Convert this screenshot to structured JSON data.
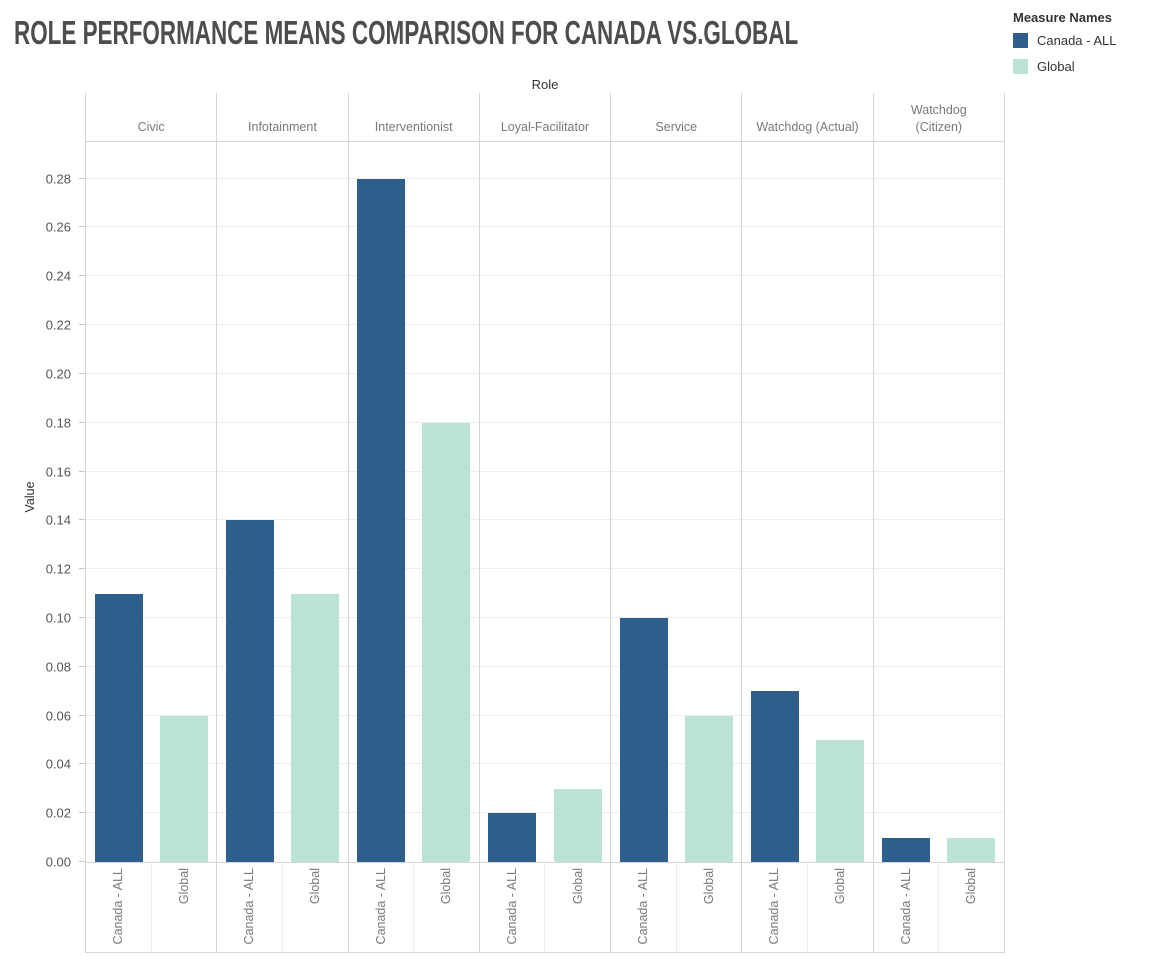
{
  "title": "ROLE PERFORMANCE MEANS COMPARISON FOR CANADA VS.GLOBAL",
  "legend": {
    "title": "Measure Names",
    "items": [
      {
        "label": "Canada - ALL",
        "color": "#2e5e8b"
      },
      {
        "label": "Global",
        "color": "#bbe3d5"
      }
    ]
  },
  "chart_data": {
    "type": "bar",
    "title": "ROLE PERFORMANCE MEANS COMPARISON FOR CANADA VS.GLOBAL",
    "column_axis_title": "Role",
    "ylabel": "Value",
    "categories": [
      "Civic",
      "Infotainment",
      "Interventionist",
      "Loyal-Facilitator",
      "Service",
      "Watchdog (Actual)",
      "Watchdog (Citizen)"
    ],
    "header_labels": [
      "Civic",
      "Infotainment",
      "Interventionist",
      "Loyal-Facilitator",
      "Service",
      "Watchdog (Actual)",
      "Watchdog\n(Citizen)"
    ],
    "series": [
      {
        "name": "Canada - ALL",
        "color": "#2e5e8b",
        "values": [
          0.11,
          0.14,
          0.28,
          0.02,
          0.1,
          0.07,
          0.01
        ]
      },
      {
        "name": "Global",
        "color": "#bbe3d5",
        "values": [
          0.06,
          0.11,
          0.18,
          0.03,
          0.06,
          0.05,
          0.01
        ]
      }
    ],
    "x_item_labels": [
      "Canada - ALL",
      "Global"
    ],
    "y_ticks": [
      "0.00",
      "0.02",
      "0.04",
      "0.06",
      "0.08",
      "0.10",
      "0.12",
      "0.14",
      "0.16",
      "0.18",
      "0.20",
      "0.22",
      "0.24",
      "0.26",
      "0.28"
    ],
    "ylim": [
      0,
      0.295
    ],
    "grid": true,
    "legend_position": "top-right"
  }
}
